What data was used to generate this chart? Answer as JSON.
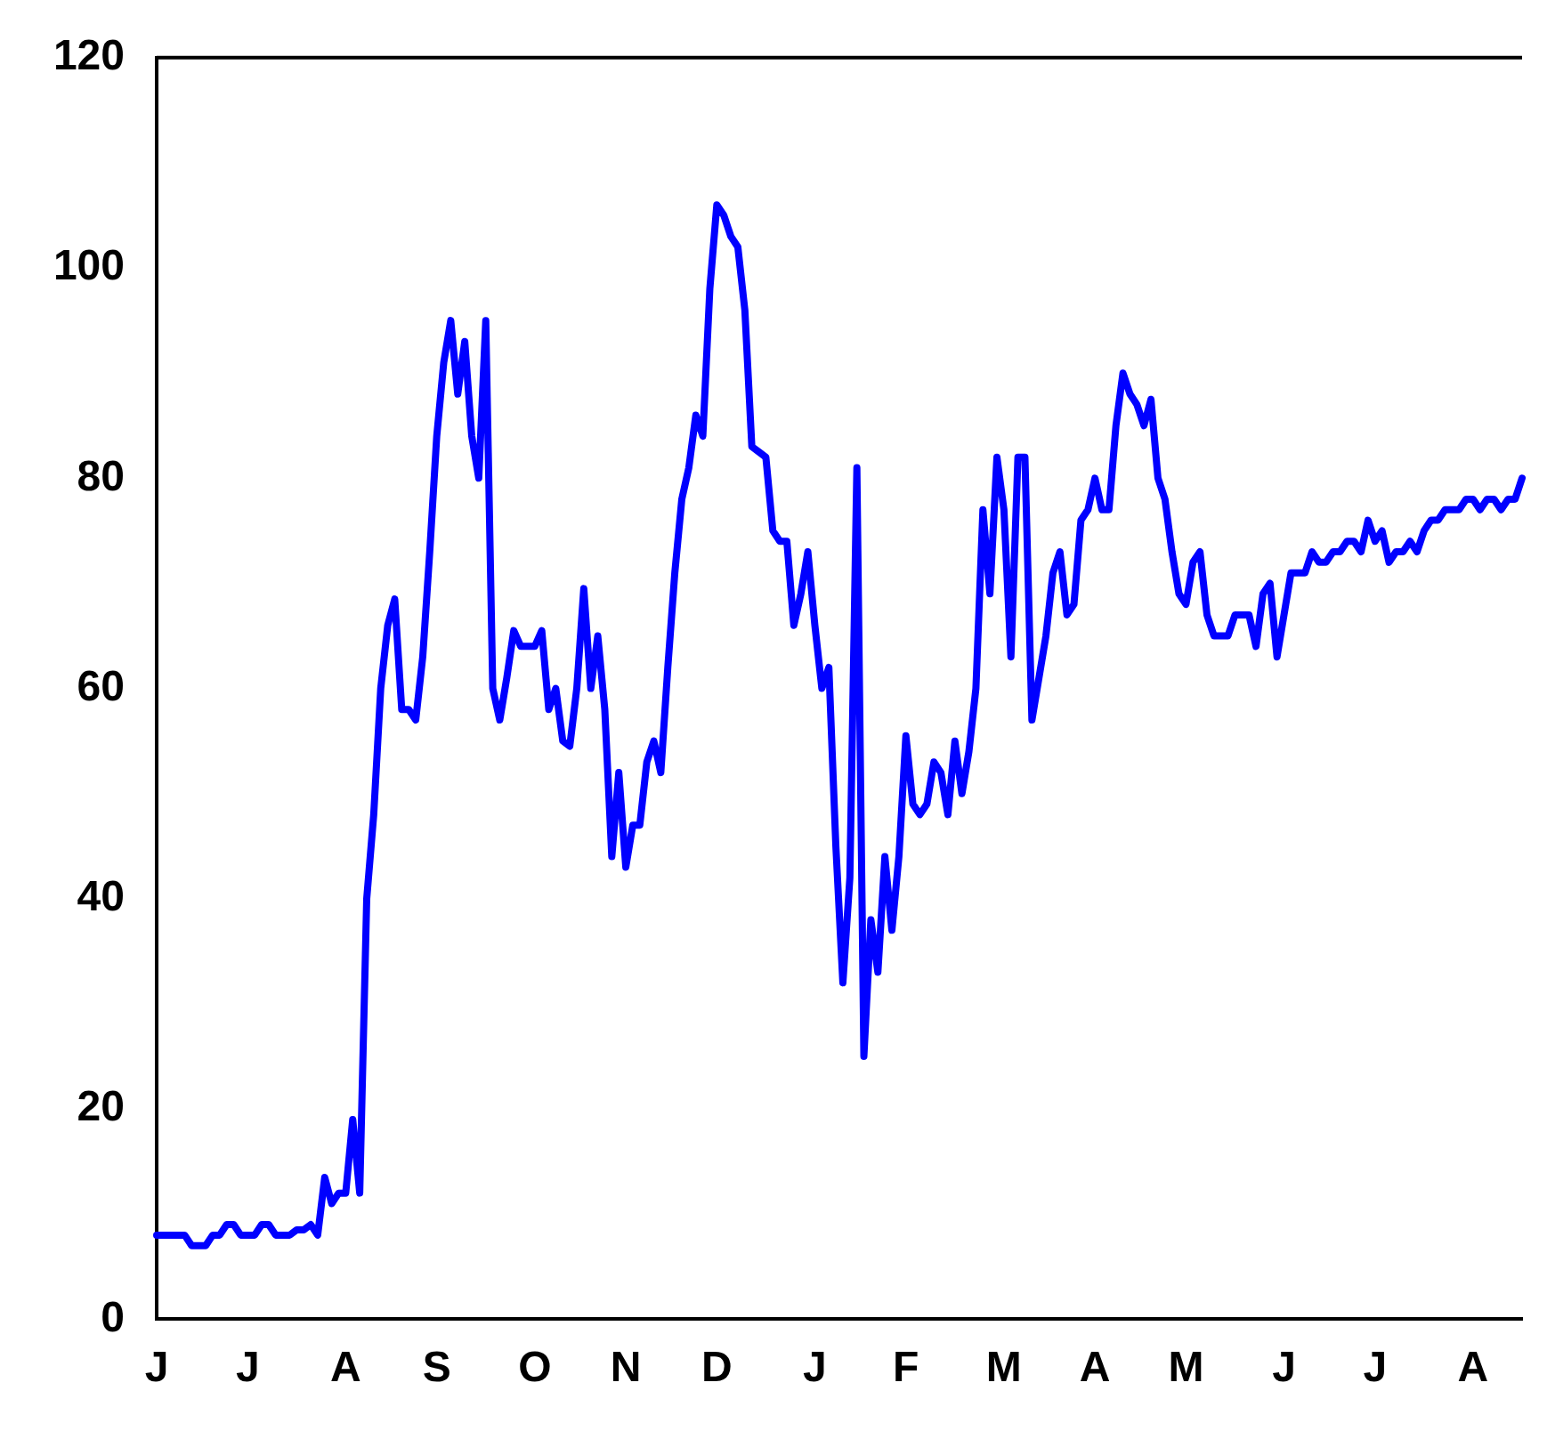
{
  "chart_data": {
    "type": "line",
    "categories": [
      "J",
      null,
      null,
      null,
      null,
      null,
      null,
      null,
      null,
      null,
      null,
      null,
      null,
      "J",
      null,
      null,
      null,
      null,
      null,
      null,
      null,
      null,
      null,
      null,
      null,
      null,
      null,
      "A",
      null,
      null,
      null,
      null,
      null,
      null,
      null,
      null,
      null,
      null,
      null,
      null,
      "S",
      null,
      null,
      null,
      null,
      null,
      null,
      null,
      null,
      null,
      null,
      null,
      null,
      null,
      "O",
      null,
      null,
      null,
      null,
      null,
      null,
      null,
      null,
      null,
      null,
      null,
      null,
      "N",
      null,
      null,
      null,
      null,
      null,
      null,
      null,
      null,
      null,
      null,
      null,
      null,
      "D",
      null,
      null,
      null,
      null,
      null,
      null,
      null,
      null,
      null,
      null,
      null,
      null,
      null,
      "J",
      null,
      null,
      null,
      null,
      null,
      null,
      null,
      null,
      null,
      null,
      null,
      null,
      "F",
      null,
      null,
      null,
      null,
      null,
      null,
      null,
      null,
      null,
      null,
      null,
      null,
      null,
      "M",
      null,
      null,
      null,
      null,
      null,
      null,
      null,
      null,
      null,
      null,
      null,
      null,
      "A",
      null,
      null,
      null,
      null,
      null,
      null,
      null,
      null,
      null,
      null,
      null,
      null,
      "M",
      null,
      null,
      null,
      null,
      null,
      null,
      null,
      null,
      null,
      null,
      null,
      null,
      null,
      "J",
      null,
      null,
      null,
      null,
      null,
      null,
      null,
      null,
      null,
      null,
      null,
      null,
      "J",
      null,
      null,
      null,
      null,
      null,
      null,
      null,
      null,
      null,
      null,
      null,
      null,
      null,
      "A",
      null,
      null,
      null,
      null,
      null,
      null,
      null
    ],
    "series": [
      {
        "color": "#0000ff",
        "values": [
          8,
          8,
          8,
          8,
          8,
          7,
          7,
          7,
          8,
          8,
          9,
          9,
          8,
          8,
          8,
          9,
          9,
          8,
          8,
          8,
          8.5,
          8.5,
          9,
          8,
          13.5,
          11,
          12,
          12,
          19,
          12,
          40,
          48,
          60,
          66,
          68.5,
          58,
          58,
          57,
          63,
          73,
          84,
          91,
          95,
          88,
          93,
          84,
          80,
          95,
          60,
          57,
          61,
          65.5,
          64,
          64,
          64,
          65.5,
          58,
          60,
          55,
          54.5,
          60,
          69.5,
          60,
          65,
          58,
          44,
          52,
          43,
          47,
          47,
          53,
          55,
          52,
          62,
          71,
          78,
          81,
          86,
          84,
          98,
          106,
          105,
          103,
          102,
          96,
          83,
          82.5,
          82,
          75,
          74,
          74,
          66,
          69,
          73,
          66,
          60,
          62,
          45,
          32,
          42,
          81,
          25,
          38,
          33,
          44,
          37,
          44,
          55.5,
          49,
          48,
          49,
          53,
          52,
          48,
          55,
          50,
          54,
          60,
          77,
          69,
          82,
          77,
          63,
          82,
          82,
          57,
          61,
          65,
          71,
          73,
          67,
          68,
          76,
          77,
          80,
          77,
          77,
          85,
          90,
          88,
          87,
          85,
          87.5,
          80,
          78,
          73,
          69,
          68,
          72,
          73,
          67,
          65,
          65,
          65,
          67,
          67,
          67,
          64,
          69,
          70,
          63,
          67,
          71,
          71,
          71,
          73,
          72,
          72,
          73,
          73,
          74,
          74,
          73,
          76,
          74,
          75,
          72,
          73,
          73,
          74,
          73,
          75,
          76,
          76,
          77,
          77,
          77,
          78,
          78,
          77,
          78,
          78,
          77,
          78,
          78,
          80
        ]
      }
    ],
    "ylim": [
      0,
      120
    ],
    "yticks": [
      0,
      20,
      40,
      60,
      80,
      100,
      120
    ],
    "grid": false,
    "legend": false,
    "marker": "none",
    "line_style": "solid"
  }
}
